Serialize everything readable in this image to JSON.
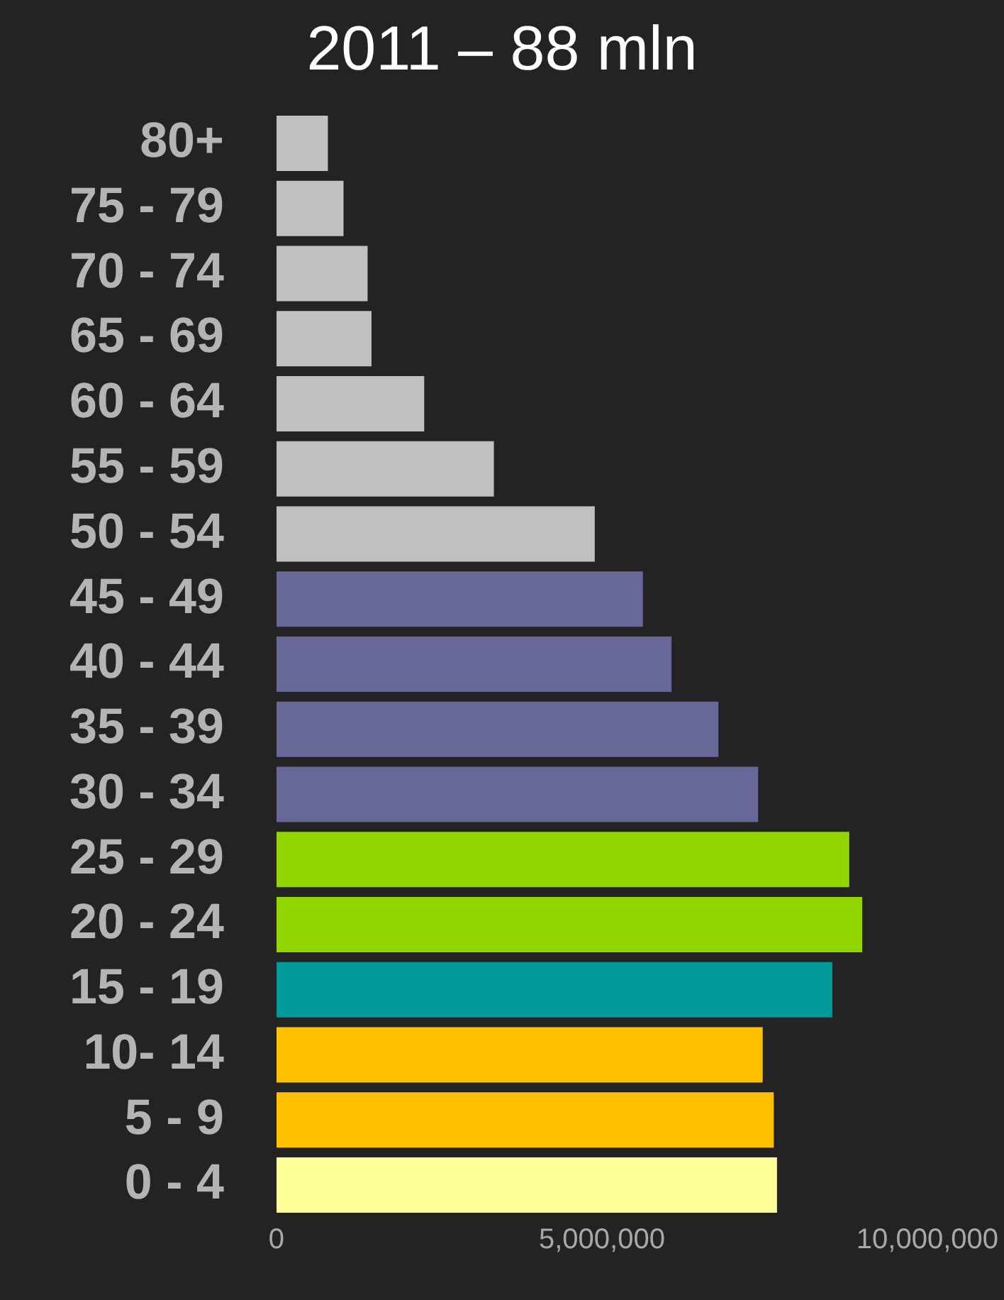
{
  "chart_data": {
    "type": "bar",
    "orientation": "horizontal",
    "title": "2011 – 88 mln",
    "categories": [
      "80+",
      "75 - 79",
      "70 - 74",
      "65 - 69",
      "60 - 64",
      "55 - 59",
      "50 - 54",
      "45 - 49",
      "40 - 44",
      "35 - 39",
      "30 - 34",
      "25 - 29",
      "20 - 24",
      "15 - 19",
      "10- 14",
      "5 - 9",
      "0 - 4"
    ],
    "values": [
      790000,
      1030000,
      1400000,
      1460000,
      2270000,
      3340000,
      4890000,
      5630000,
      6070000,
      6790000,
      7400000,
      8800000,
      9000000,
      8540000,
      7470000,
      7640000,
      7690000
    ],
    "colors": [
      "#c0c0c0",
      "#c0c0c0",
      "#c0c0c0",
      "#c0c0c0",
      "#c0c0c0",
      "#c0c0c0",
      "#c0c0c0",
      "#676798",
      "#676798",
      "#676798",
      "#676798",
      "#93d500",
      "#93d500",
      "#009898",
      "#ffc000",
      "#ffc000",
      "#ffff99"
    ],
    "xlim": [
      0,
      10000000
    ],
    "xticks": [
      {
        "value": 0,
        "label": "0"
      },
      {
        "value": 5000000,
        "label": "5,000,000"
      },
      {
        "value": 10000000,
        "label": "10,000,000"
      }
    ],
    "grid": false,
    "legend": false
  }
}
